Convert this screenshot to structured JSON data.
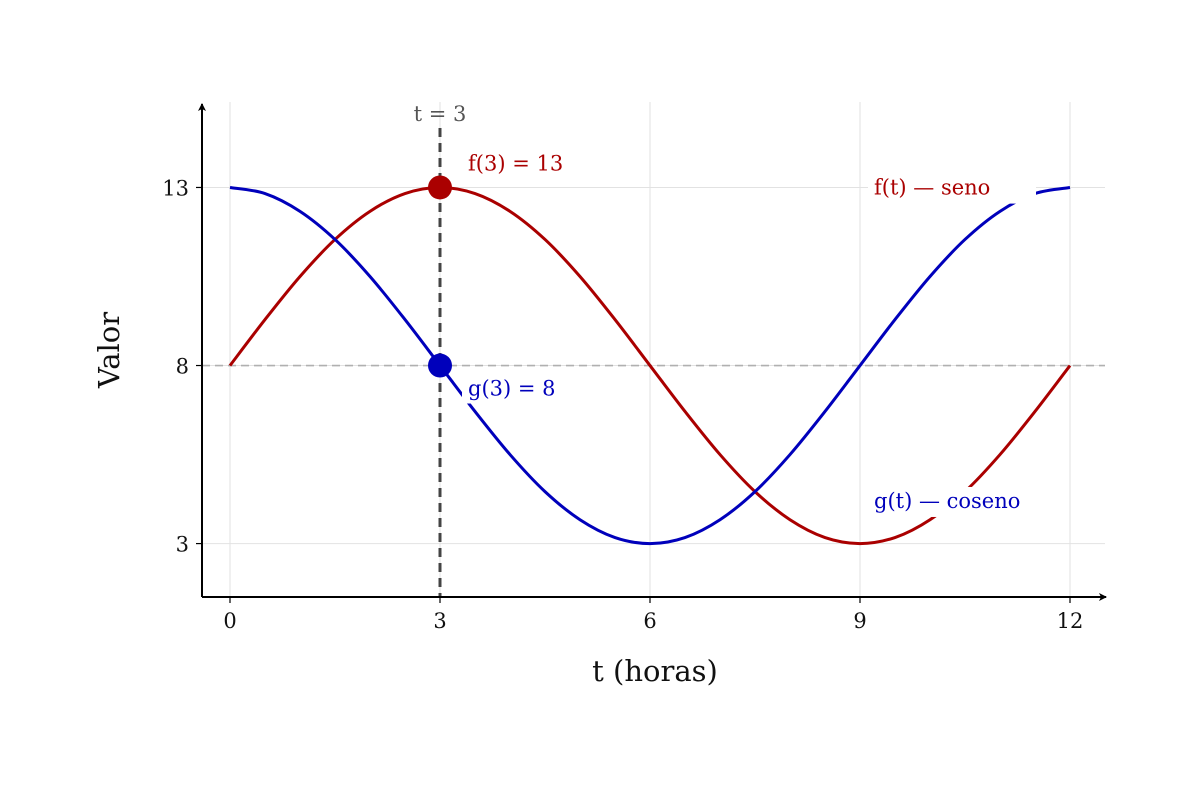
{
  "chart_data": {
    "type": "line",
    "xlabel": "t (horas)",
    "ylabel": "Valor",
    "xlim": [
      -0.4,
      12.5
    ],
    "ylim": [
      1.5,
      15.4
    ],
    "x_ticks": [
      0,
      3,
      6,
      9,
      12
    ],
    "y_ticks": [
      3,
      8,
      13
    ],
    "grid": true,
    "series": [
      {
        "name": "f(t) — seno",
        "color": "#aa0000",
        "x": [
          0,
          0.5,
          1,
          1.5,
          2,
          2.5,
          3,
          3.5,
          4,
          4.5,
          5,
          5.5,
          6,
          6.5,
          7,
          7.5,
          8,
          8.5,
          9,
          9.5,
          10,
          10.5,
          11,
          11.5,
          12
        ],
        "y": [
          8,
          9.29,
          10.5,
          11.54,
          12.33,
          12.83,
          13,
          12.83,
          12.33,
          11.54,
          10.5,
          9.29,
          8,
          6.71,
          5.5,
          4.46,
          3.67,
          3.17,
          3,
          3.17,
          3.67,
          4.46,
          5.5,
          6.71,
          8
        ]
      },
      {
        "name": "g(t) — coseno",
        "color": "#0000bb",
        "x": [
          0,
          0.5,
          1,
          1.5,
          2,
          2.5,
          3,
          3.5,
          4,
          4.5,
          5,
          5.5,
          6,
          6.5,
          7,
          7.5,
          8,
          8.5,
          9,
          9.5,
          10,
          10.5,
          11,
          11.5,
          12
        ],
        "y": [
          13,
          12.83,
          12.33,
          11.54,
          10.5,
          9.29,
          8,
          6.71,
          5.5,
          4.46,
          3.67,
          3.17,
          3,
          3.17,
          3.67,
          4.46,
          5.5,
          6.71,
          8,
          9.29,
          10.5,
          11.54,
          12.33,
          12.83,
          13
        ]
      }
    ],
    "reference_lines": [
      {
        "orientation": "vertical",
        "x": 3,
        "label": "t = 3",
        "color": "#444444"
      },
      {
        "orientation": "horizontal",
        "y": 8,
        "color": "#b0b0b0"
      }
    ],
    "highlight_points": [
      {
        "x": 3,
        "y": 13,
        "label": "f(3) = 13",
        "color": "#aa0000"
      },
      {
        "x": 3,
        "y": 8,
        "label": "g(3) = 8",
        "color": "#0000bb"
      }
    ],
    "series_labels": [
      {
        "text": "f(t) — seno",
        "x": 9.2,
        "y": 12.8,
        "color": "#aa0000"
      },
      {
        "text": "g(t) — coseno",
        "x": 9.2,
        "y": 4.0,
        "color": "#0000bb"
      }
    ]
  }
}
